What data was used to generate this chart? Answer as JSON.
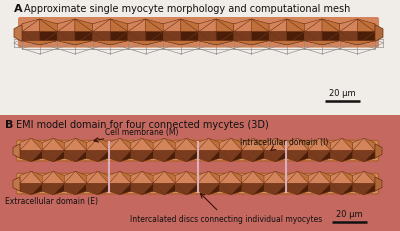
{
  "panel_A_title": "Approximate single myocyte morphology and computational mesh",
  "panel_B_title": "EMI model domain for four connected mycytes (3D)",
  "label_A": "A",
  "label_B": "B",
  "scale_bar_text": "20 μm",
  "bg_color": "#f0ede8",
  "myocyte_base": "#d4845a",
  "myocyte_light": "#e8a878",
  "myocyte_mid": "#c0703a",
  "myocyte_dark": "#7a3c1e",
  "myocyte_darkest": "#4a1e08",
  "mesh_color": "#888888",
  "extracell_bg": "#c46860",
  "disc_color": "#e0b8c8",
  "annot_arrow_color": "#3a1008",
  "annot_text_color": "#111111",
  "label_color": "#111111",
  "scale_bar_color": "#111111"
}
